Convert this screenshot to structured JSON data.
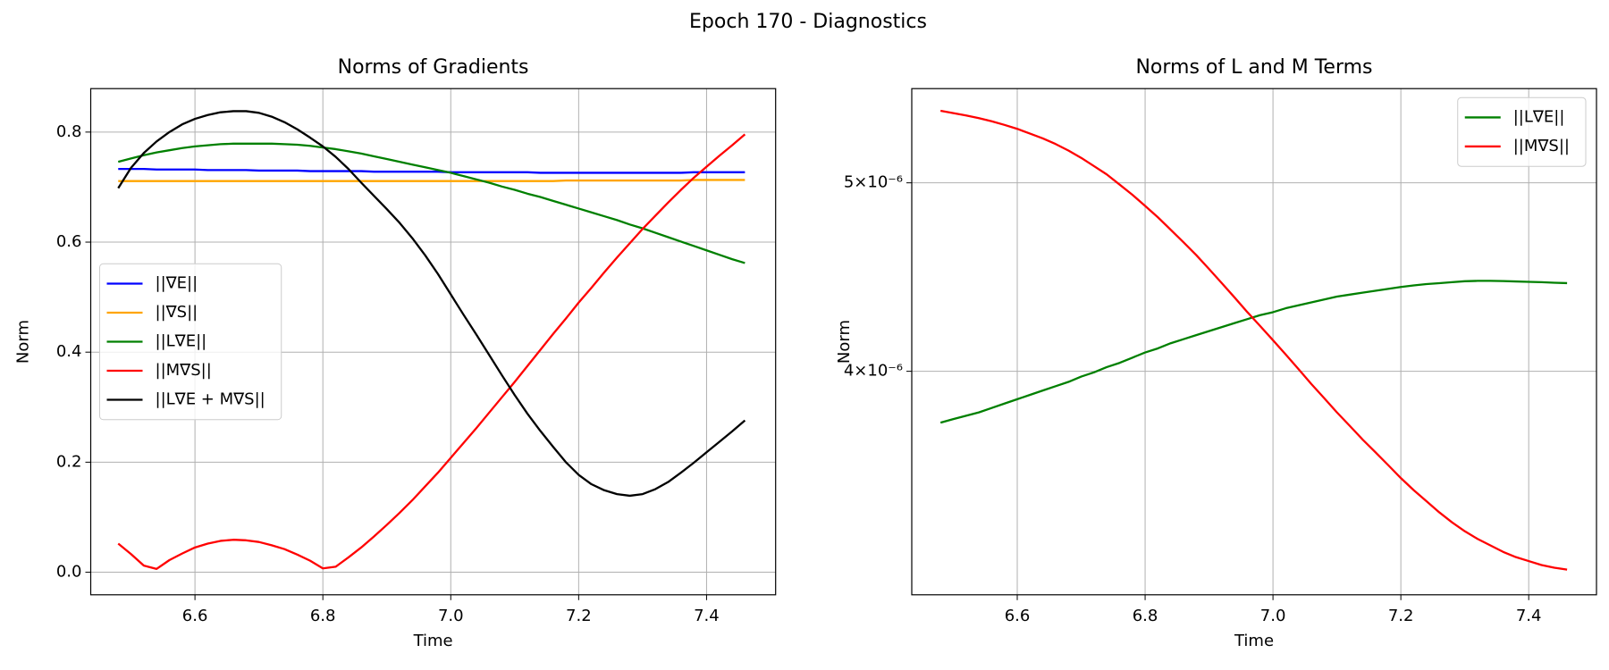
{
  "title": "Epoch 170 - Diagnostics",
  "chart_data": [
    {
      "type": "line",
      "title": "Norms of Gradients",
      "xlabel": "Time",
      "ylabel": "Norm",
      "yscale": "linear",
      "grid": true,
      "legend": "center left",
      "x": [
        6.48,
        6.5,
        6.52,
        6.54,
        6.56,
        6.58,
        6.6,
        6.62,
        6.64,
        6.66,
        6.68,
        6.7,
        6.72,
        6.74,
        6.76,
        6.78,
        6.8,
        6.82,
        6.84,
        6.86,
        6.88,
        6.9,
        6.92,
        6.94,
        6.96,
        6.98,
        7.0,
        7.02,
        7.04,
        7.06,
        7.08,
        7.1,
        7.12,
        7.14,
        7.16,
        7.18,
        7.2,
        7.22,
        7.24,
        7.26,
        7.28,
        7.3,
        7.32,
        7.34,
        7.36,
        7.38,
        7.4,
        7.42,
        7.44,
        7.46
      ],
      "xlim": [
        6.437,
        7.508
      ],
      "ylim": [
        -0.041,
        0.879
      ],
      "xticks": [
        6.6,
        6.8,
        {
          "value": 7.0,
          "label": "7.0"
        },
        7.2,
        7.4
      ],
      "yticks": [
        {
          "value": 0,
          "label": "0.0"
        },
        0.2,
        0.4,
        0.6,
        0.8
      ],
      "series": [
        {
          "name": "||∇E||",
          "color": "#0000ff",
          "values": [
            0.733,
            0.733,
            0.733,
            0.732,
            0.732,
            0.732,
            0.732,
            0.731,
            0.731,
            0.731,
            0.731,
            0.73,
            0.73,
            0.73,
            0.73,
            0.729,
            0.729,
            0.729,
            0.729,
            0.729,
            0.728,
            0.728,
            0.728,
            0.728,
            0.728,
            0.728,
            0.727,
            0.727,
            0.727,
            0.727,
            0.727,
            0.727,
            0.727,
            0.726,
            0.726,
            0.726,
            0.726,
            0.726,
            0.726,
            0.726,
            0.726,
            0.726,
            0.726,
            0.726,
            0.726,
            0.727,
            0.727,
            0.727,
            0.727,
            0.727
          ]
        },
        {
          "name": "||∇S||",
          "color": "#ffa500",
          "values": [
            0.711,
            0.711,
            0.711,
            0.711,
            0.711,
            0.711,
            0.711,
            0.711,
            0.711,
            0.711,
            0.711,
            0.711,
            0.711,
            0.711,
            0.711,
            0.711,
            0.711,
            0.711,
            0.711,
            0.711,
            0.711,
            0.711,
            0.711,
            0.711,
            0.711,
            0.711,
            0.711,
            0.711,
            0.711,
            0.711,
            0.711,
            0.711,
            0.711,
            0.711,
            0.711,
            0.712,
            0.712,
            0.712,
            0.712,
            0.712,
            0.712,
            0.712,
            0.712,
            0.712,
            0.712,
            0.713,
            0.713,
            0.713,
            0.713,
            0.713
          ]
        },
        {
          "name": "||L∇E||",
          "color": "#008000",
          "values": [
            0.746,
            0.752,
            0.758,
            0.763,
            0.767,
            0.771,
            0.774,
            0.776,
            0.778,
            0.779,
            0.779,
            0.779,
            0.779,
            0.778,
            0.777,
            0.775,
            0.772,
            0.769,
            0.765,
            0.761,
            0.756,
            0.751,
            0.746,
            0.741,
            0.736,
            0.731,
            0.726,
            0.72,
            0.714,
            0.708,
            0.701,
            0.695,
            0.688,
            0.682,
            0.675,
            0.668,
            0.661,
            0.654,
            0.647,
            0.64,
            0.632,
            0.625,
            0.617,
            0.609,
            0.601,
            0.593,
            0.585,
            0.577,
            0.569,
            0.562
          ]
        },
        {
          "name": "||M∇S||",
          "color": "#ff0000",
          "values": [
            0.052,
            0.033,
            0.012,
            0.006,
            0.022,
            0.034,
            0.045,
            0.052,
            0.057,
            0.059,
            0.058,
            0.055,
            0.049,
            0.042,
            0.032,
            0.021,
            0.007,
            0.01,
            0.027,
            0.045,
            0.065,
            0.086,
            0.108,
            0.131,
            0.156,
            0.181,
            0.208,
            0.235,
            0.262,
            0.29,
            0.318,
            0.346,
            0.375,
            0.404,
            0.433,
            0.461,
            0.49,
            0.517,
            0.545,
            0.572,
            0.598,
            0.624,
            0.648,
            0.672,
            0.695,
            0.717,
            0.737,
            0.757,
            0.776,
            0.796
          ]
        },
        {
          "name": "||L∇E + M∇S||",
          "color": "#000000",
          "values": [
            0.698,
            0.735,
            0.762,
            0.783,
            0.8,
            0.814,
            0.824,
            0.831,
            0.836,
            0.838,
            0.838,
            0.835,
            0.828,
            0.818,
            0.805,
            0.79,
            0.774,
            0.755,
            0.733,
            0.708,
            0.684,
            0.66,
            0.635,
            0.607,
            0.576,
            0.542,
            0.505,
            0.468,
            0.432,
            0.395,
            0.358,
            0.322,
            0.288,
            0.257,
            0.228,
            0.2,
            0.177,
            0.16,
            0.149,
            0.142,
            0.139,
            0.142,
            0.151,
            0.164,
            0.181,
            0.199,
            0.218,
            0.237,
            0.256,
            0.276
          ]
        }
      ]
    },
    {
      "type": "line",
      "title": "Norms of L and M Terms",
      "xlabel": "Time",
      "ylabel": "Norm",
      "yscale": "log",
      "grid": true,
      "legend": "upper right",
      "x": [
        6.48,
        6.5,
        6.52,
        6.54,
        6.56,
        6.58,
        6.6,
        6.62,
        6.64,
        6.66,
        6.68,
        6.7,
        6.72,
        6.74,
        6.76,
        6.78,
        6.8,
        6.82,
        6.84,
        6.86,
        6.88,
        6.9,
        6.92,
        6.94,
        6.96,
        6.98,
        7.0,
        7.02,
        7.04,
        7.06,
        7.08,
        7.1,
        7.12,
        7.14,
        7.16,
        7.18,
        7.2,
        7.22,
        7.24,
        7.26,
        7.28,
        7.3,
        7.32,
        7.34,
        7.36,
        7.38,
        7.4,
        7.42,
        7.44,
        7.46
      ],
      "xlim": [
        6.435,
        7.506
      ],
      "ylim": [
        3.07e-06,
        5.59e-06
      ],
      "xticks": [
        6.6,
        6.8,
        {
          "value": 7.0,
          "label": "7.0"
        },
        7.2,
        7.4
      ],
      "yticks": [
        {
          "value": 4e-06,
          "label": "4×10⁻⁶"
        },
        {
          "value": 5e-06,
          "label": "5×10⁻⁶"
        }
      ],
      "series": [
        {
          "name": "||L∇E||",
          "color": "#008000",
          "values": [
            3.764e-06,
            3.78e-06,
            3.795e-06,
            3.81e-06,
            3.83e-06,
            3.85e-06,
            3.87e-06,
            3.89e-06,
            3.91e-06,
            3.93e-06,
            3.95e-06,
            3.975e-06,
            3.995e-06,
            4.02e-06,
            4.04e-06,
            4.065e-06,
            4.09e-06,
            4.11e-06,
            4.135e-06,
            4.155e-06,
            4.175e-06,
            4.195e-06,
            4.215e-06,
            4.235e-06,
            4.255e-06,
            4.275e-06,
            4.29e-06,
            4.31e-06,
            4.325e-06,
            4.34e-06,
            4.355e-06,
            4.37e-06,
            4.38e-06,
            4.39e-06,
            4.4e-06,
            4.41e-06,
            4.42e-06,
            4.428e-06,
            4.435e-06,
            4.44e-06,
            4.445e-06,
            4.45e-06,
            4.452e-06,
            4.452e-06,
            4.451e-06,
            4.449e-06,
            4.447e-06,
            4.445e-06,
            4.442e-06,
            4.44e-06
          ]
        },
        {
          "name": "||M∇S||",
          "color": "#ff0000",
          "values": [
            5.445e-06,
            5.43e-06,
            5.415e-06,
            5.398e-06,
            5.378e-06,
            5.355e-06,
            5.33e-06,
            5.3e-06,
            5.27e-06,
            5.235e-06,
            5.195e-06,
            5.15e-06,
            5.1e-06,
            5.05e-06,
            4.99e-06,
            4.93e-06,
            4.865e-06,
            4.8e-06,
            4.73e-06,
            4.66e-06,
            4.59e-06,
            4.515e-06,
            4.44e-06,
            4.365e-06,
            4.29e-06,
            4.22e-06,
            4.15e-06,
            4.08e-06,
            4.01e-06,
            3.94e-06,
            3.875e-06,
            3.81e-06,
            3.75e-06,
            3.69e-06,
            3.635e-06,
            3.58e-06,
            3.525e-06,
            3.475e-06,
            3.43e-06,
            3.385e-06,
            3.345e-06,
            3.31e-06,
            3.28e-06,
            3.255e-06,
            3.23e-06,
            3.21e-06,
            3.195e-06,
            3.18e-06,
            3.17e-06,
            3.163e-06
          ]
        }
      ]
    }
  ]
}
